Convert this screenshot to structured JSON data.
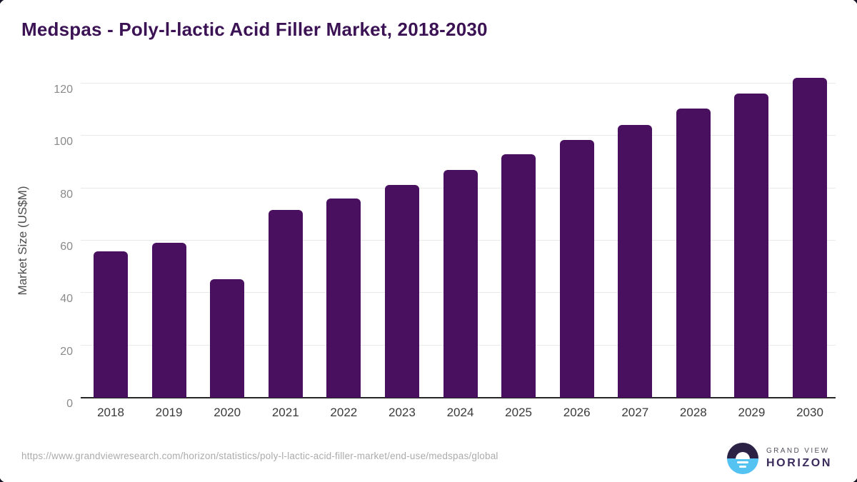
{
  "title": "Medspas - Poly-l-lactic Acid Filler Market, 2018-2030",
  "chart_data": {
    "type": "bar",
    "title": "Medspas - Poly-l-lactic Acid Filler Market, 2018-2030",
    "categories": [
      "2018",
      "2019",
      "2020",
      "2021",
      "2022",
      "2023",
      "2024",
      "2025",
      "2026",
      "2027",
      "2028",
      "2029",
      "2030"
    ],
    "values": [
      55.9,
      59.2,
      45.4,
      71.8,
      76.2,
      81.4,
      87.1,
      92.9,
      98.4,
      104.3,
      110.4,
      116.1,
      122.2
    ],
    "xlabel": "",
    "ylabel": "Market Size (US$M)",
    "ylim": [
      0,
      120
    ],
    "y_ticks": [
      0,
      20,
      40,
      60,
      80,
      100,
      120
    ],
    "grid": true,
    "legend": "none",
    "bar_color": "#4a1060"
  },
  "colors": {
    "bar": "#4a1060",
    "title_text": "#3b1254",
    "gridline": "#e9e9e9",
    "axis_line": "#262626",
    "y_tick_text": "#8a8a8a",
    "x_tick_text": "#3a3a3a",
    "url_text": "#ababab",
    "logo_purple": "#2b2145",
    "logo_blue": "#54c3f1"
  },
  "footer": {
    "source_url": "https://www.grandviewresearch.com/horizon/statistics/poly-l-lactic-acid-filler-market/end-use/medspas/global",
    "logo": {
      "line1": "GRAND VIEW",
      "line2": "HORIZON"
    }
  }
}
